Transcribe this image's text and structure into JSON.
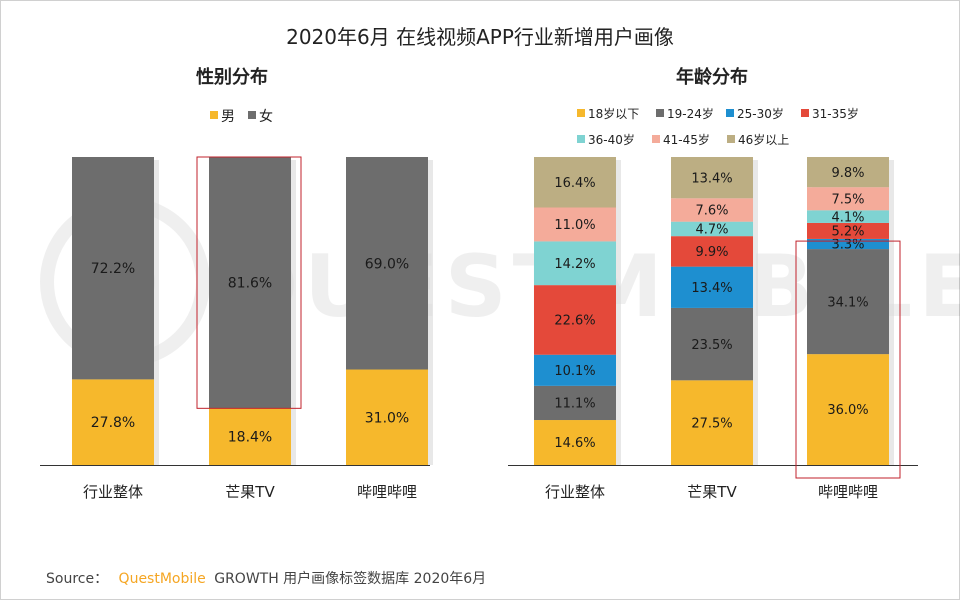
{
  "page_title": "2020年6月 在线视频APP行业新增用户画像",
  "source": {
    "prefix": "Source：",
    "brand": "QuestMobile",
    "suffix": "GROWTH 用户画像标签数据库 2020年6月"
  },
  "watermark": "QUESTMOBILE",
  "colors": {
    "male": "#f6b82c",
    "female": "#6d6d6d",
    "highlight_box": "#c0222b",
    "brand": "#f5a623"
  },
  "chart_data": [
    {
      "type": "bar",
      "stacked": true,
      "normalized": true,
      "title": "性别分布",
      "categories": [
        "行业整体",
        "芒果TV",
        "哔哩哔哩"
      ],
      "series": [
        {
          "name": "男",
          "color": "#f6b82c",
          "values": [
            27.8,
            18.4,
            31.0
          ],
          "labels": [
            "27.8%",
            "18.4%",
            "31.0%"
          ]
        },
        {
          "name": "女",
          "color": "#6d6d6d",
          "values": [
            72.2,
            81.6,
            69.0
          ],
          "labels": [
            "72.2%",
            "81.6%",
            "69.0%"
          ]
        }
      ],
      "legend_position": "top",
      "highlight": {
        "category": "芒果TV",
        "series": "女"
      }
    },
    {
      "type": "bar",
      "stacked": true,
      "normalized": true,
      "title": "年龄分布",
      "categories": [
        "行业整体",
        "芒果TV",
        "哔哩哔哩"
      ],
      "series": [
        {
          "name": "18岁以下",
          "color": "#f6b82c",
          "values": [
            14.6,
            27.5,
            36.0
          ],
          "labels": [
            "14.6%",
            "27.5%",
            "36.0%"
          ]
        },
        {
          "name": "19-24岁",
          "color": "#6d6d6d",
          "values": [
            11.1,
            23.5,
            34.1
          ],
          "labels": [
            "11.1%",
            "23.5%",
            "34.1%"
          ]
        },
        {
          "name": "25-30岁",
          "color": "#1e8fd0",
          "values": [
            10.1,
            13.4,
            3.3
          ],
          "labels": [
            "10.1%",
            "13.4%",
            "3.3%"
          ]
        },
        {
          "name": "31-35岁",
          "color": "#e4493a",
          "values": [
            22.6,
            9.9,
            5.2
          ],
          "labels": [
            "22.6%",
            "9.9%",
            "5.2%"
          ]
        },
        {
          "name": "36-40岁",
          "color": "#7fd3d2",
          "values": [
            14.2,
            4.7,
            4.1
          ],
          "labels": [
            "14.2%",
            "4.7%",
            "4.1%"
          ]
        },
        {
          "name": "41-45岁",
          "color": "#f4ab9a",
          "values": [
            11.0,
            7.6,
            7.5
          ],
          "labels": [
            "11.0%",
            "7.6%",
            "7.5%"
          ]
        },
        {
          "name": "46岁以上",
          "color": "#bcae83",
          "values": [
            16.4,
            13.4,
            9.8
          ],
          "labels": [
            "16.4%",
            "13.4%",
            "9.8%"
          ]
        }
      ],
      "legend_position": "top",
      "highlight": {
        "category": "哔哩哔哩",
        "series": [
          "18岁以下",
          "19-24岁"
        ]
      }
    }
  ]
}
